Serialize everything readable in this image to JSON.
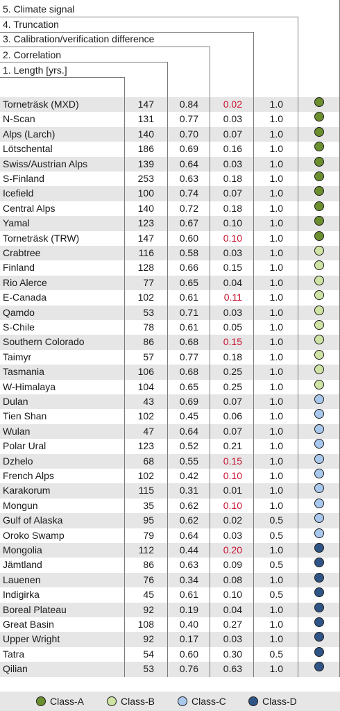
{
  "chart_data": {
    "type": "table",
    "columns": [
      {
        "key": "name",
        "label": ""
      },
      {
        "key": "length",
        "label": "1. Length [yrs.]"
      },
      {
        "key": "correlation",
        "label": "2. Correlation"
      },
      {
        "key": "diff",
        "label": "3. Calibration/verification difference"
      },
      {
        "key": "truncation",
        "label": "4. Truncation"
      },
      {
        "key": "class",
        "label": "5. Climate signal"
      }
    ],
    "rows": [
      {
        "name": "Torneträsk (MXD)",
        "length": "147",
        "correlation": "0.84",
        "diff": "0.02",
        "diff_flag": true,
        "truncation": "1.0",
        "class": "A"
      },
      {
        "name": "N-Scan",
        "length": "131",
        "correlation": "0.77",
        "diff": "0.03",
        "diff_flag": false,
        "truncation": "1.0",
        "class": "A"
      },
      {
        "name": "Alps (Larch)",
        "length": "140",
        "correlation": "0.70",
        "diff": "0.07",
        "diff_flag": false,
        "truncation": "1.0",
        "class": "A"
      },
      {
        "name": "Lötschental",
        "length": "186",
        "correlation": "0.69",
        "diff": "0.16",
        "diff_flag": false,
        "truncation": "1.0",
        "class": "A"
      },
      {
        "name": "Swiss/Austrian Alps",
        "length": "139",
        "correlation": "0.64",
        "diff": "0.03",
        "diff_flag": false,
        "truncation": "1.0",
        "class": "A"
      },
      {
        "name": "S-Finland",
        "length": "253",
        "correlation": "0.63",
        "diff": "0.18",
        "diff_flag": false,
        "truncation": "1.0",
        "class": "A"
      },
      {
        "name": "Icefield",
        "length": "100",
        "correlation": "0.74",
        "diff": "0.07",
        "diff_flag": false,
        "truncation": "1.0",
        "class": "A"
      },
      {
        "name": "Central Alps",
        "length": "140",
        "correlation": "0.72",
        "diff": "0.18",
        "diff_flag": false,
        "truncation": "1.0",
        "class": "A"
      },
      {
        "name": "Yamal",
        "length": "123",
        "correlation": "0.67",
        "diff": "0.10",
        "diff_flag": false,
        "truncation": "1.0",
        "class": "A"
      },
      {
        "name": "Torneträsk (TRW)",
        "length": "147",
        "correlation": "0.60",
        "diff": "0.10",
        "diff_flag": true,
        "truncation": "1.0",
        "class": "A"
      },
      {
        "name": "Crabtree",
        "length": "116",
        "correlation": "0.58",
        "diff": "0.03",
        "diff_flag": false,
        "truncation": "1.0",
        "class": "B"
      },
      {
        "name": "Finland",
        "length": "128",
        "correlation": "0.66",
        "diff": "0.15",
        "diff_flag": false,
        "truncation": "1.0",
        "class": "B"
      },
      {
        "name": "Rio Alerce",
        "length": "77",
        "correlation": "0.65",
        "diff": "0.04",
        "diff_flag": false,
        "truncation": "1.0",
        "class": "B"
      },
      {
        "name": "E-Canada",
        "length": "102",
        "correlation": "0.61",
        "diff": "0.11",
        "diff_flag": true,
        "truncation": "1.0",
        "class": "B"
      },
      {
        "name": "Qamdo",
        "length": "53",
        "correlation": "0.71",
        "diff": "0.03",
        "diff_flag": false,
        "truncation": "1.0",
        "class": "B"
      },
      {
        "name": "S-Chile",
        "length": "78",
        "correlation": "0.61",
        "diff": "0.05",
        "diff_flag": false,
        "truncation": "1.0",
        "class": "B"
      },
      {
        "name": "Southern Colorado",
        "length": "86",
        "correlation": "0.68",
        "diff": "0.15",
        "diff_flag": true,
        "truncation": "1.0",
        "class": "B"
      },
      {
        "name": "Taimyr",
        "length": "57",
        "correlation": "0.77",
        "diff": "0.18",
        "diff_flag": false,
        "truncation": "1.0",
        "class": "B"
      },
      {
        "name": "Tasmania",
        "length": "106",
        "correlation": "0.68",
        "diff": "0.25",
        "diff_flag": false,
        "truncation": "1.0",
        "class": "B"
      },
      {
        "name": "W-Himalaya",
        "length": "104",
        "correlation": "0.65",
        "diff": "0.25",
        "diff_flag": false,
        "truncation": "1.0",
        "class": "B"
      },
      {
        "name": "Dulan",
        "length": "43",
        "correlation": "0.69",
        "diff": "0.07",
        "diff_flag": false,
        "truncation": "1.0",
        "class": "C"
      },
      {
        "name": "Tien Shan",
        "length": "102",
        "correlation": "0.45",
        "diff": "0.06",
        "diff_flag": false,
        "truncation": "1.0",
        "class": "C"
      },
      {
        "name": "Wulan",
        "length": "47",
        "correlation": "0.64",
        "diff": "0.07",
        "diff_flag": false,
        "truncation": "1.0",
        "class": "C"
      },
      {
        "name": "Polar Ural",
        "length": "123",
        "correlation": "0.52",
        "diff": "0.21",
        "diff_flag": false,
        "truncation": "1.0",
        "class": "C"
      },
      {
        "name": "Dzhelo",
        "length": "68",
        "correlation": "0.55",
        "diff": "0.15",
        "diff_flag": true,
        "truncation": "1.0",
        "class": "C"
      },
      {
        "name": "French Alps",
        "length": "102",
        "correlation": "0.42",
        "diff": "0.10",
        "diff_flag": true,
        "truncation": "1.0",
        "class": "C"
      },
      {
        "name": "Karakorum",
        "length": "115",
        "correlation": "0.31",
        "diff": "0.01",
        "diff_flag": false,
        "truncation": "1.0",
        "class": "C"
      },
      {
        "name": "Mongun",
        "length": "35",
        "correlation": "0.62",
        "diff": "0.10",
        "diff_flag": true,
        "truncation": "1.0",
        "class": "C"
      },
      {
        "name": "Gulf of Alaska",
        "length": "95",
        "correlation": "0.62",
        "diff": "0.02",
        "diff_flag": false,
        "truncation": "0.5",
        "class": "C"
      },
      {
        "name": "Oroko Swamp",
        "length": "79",
        "correlation": "0.64",
        "diff": "0.03",
        "diff_flag": false,
        "truncation": "0.5",
        "class": "C"
      },
      {
        "name": "Mongolia",
        "length": "112",
        "correlation": "0.44",
        "diff": "0.20",
        "diff_flag": true,
        "truncation": "1.0",
        "class": "D"
      },
      {
        "name": "Jämtland",
        "length": "86",
        "correlation": "0.63",
        "diff": "0.09",
        "diff_flag": false,
        "truncation": "0.5",
        "class": "D"
      },
      {
        "name": "Lauenen",
        "length": "76",
        "correlation": "0.34",
        "diff": "0.08",
        "diff_flag": false,
        "truncation": "1.0",
        "class": "D"
      },
      {
        "name": "Indigirka",
        "length": "45",
        "correlation": "0.61",
        "diff": "0.10",
        "diff_flag": false,
        "truncation": "0.5",
        "class": "D"
      },
      {
        "name": "Boreal Plateau",
        "length": "92",
        "correlation": "0.19",
        "diff": "0.04",
        "diff_flag": false,
        "truncation": "1.0",
        "class": "D"
      },
      {
        "name": "Great Basin",
        "length": "108",
        "correlation": "0.40",
        "diff": "0.27",
        "diff_flag": false,
        "truncation": "1.0",
        "class": "D"
      },
      {
        "name": "Upper Wright",
        "length": "92",
        "correlation": "0.17",
        "diff": "0.03",
        "diff_flag": false,
        "truncation": "1.0",
        "class": "D"
      },
      {
        "name": "Tatra",
        "length": "54",
        "correlation": "0.60",
        "diff": "0.30",
        "diff_flag": false,
        "truncation": "0.5",
        "class": "D"
      },
      {
        "name": "Qilian",
        "length": "53",
        "correlation": "0.76",
        "diff": "0.63",
        "diff_flag": false,
        "truncation": "1.0",
        "class": "D"
      }
    ],
    "legend": [
      {
        "key": "A",
        "label": "Class-A",
        "color": "#6b8e2f"
      },
      {
        "key": "B",
        "label": "Class-B",
        "color": "#cfe3a4"
      },
      {
        "key": "C",
        "label": "Class-C",
        "color": "#a9c8ee"
      },
      {
        "key": "D",
        "label": "Class-D",
        "color": "#2f5587"
      }
    ],
    "colors": {
      "row_shade": "#e6e6e6",
      "flag_text": "#c8102e",
      "rule": "#7a7a7a"
    }
  }
}
